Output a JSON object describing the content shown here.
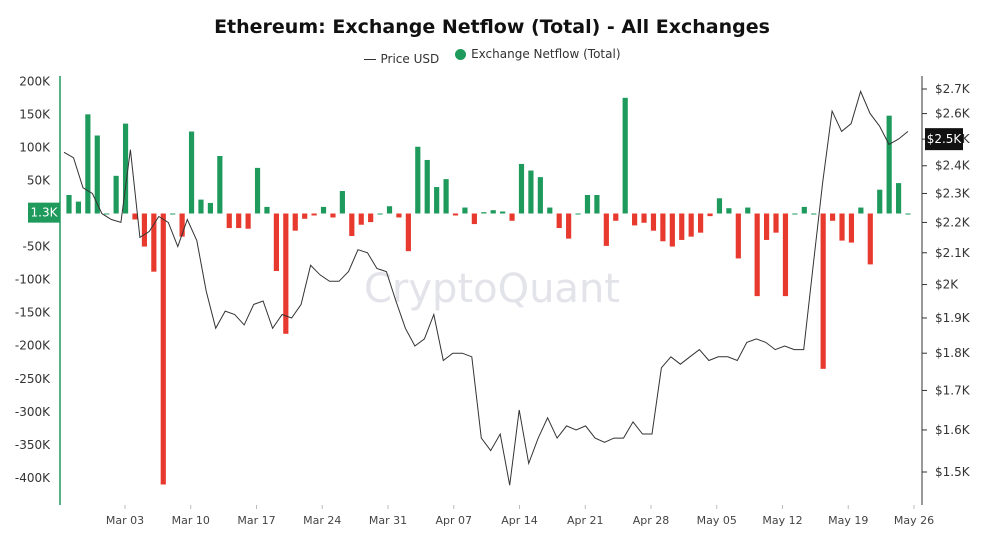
{
  "title": "Ethereum: Exchange Netflow (Total) - All Exchanges",
  "legend": {
    "price_label": "Price USD",
    "netflow_label": "Exchange Netflow (Total)"
  },
  "watermark": "CryptoQuant",
  "colors": {
    "inflow": "#1e9a5c",
    "outflow": "#e8392e",
    "price_line": "#333333",
    "axis_line": "#1e9a5c"
  },
  "chart_data": {
    "type": "bar",
    "title": "Ethereum: Exchange Netflow (Total) - All Exchanges",
    "x_tick_labels": [
      "Mar 03",
      "Mar 10",
      "Mar 17",
      "Mar 24",
      "Mar 31",
      "Apr 07",
      "Apr 14",
      "Apr 21",
      "Apr 28",
      "May 05",
      "May 12",
      "May 19",
      "May 26"
    ],
    "y_left": {
      "ticks": [
        200000,
        150000,
        100000,
        50000,
        -50000,
        -100000,
        -150000,
        -200000,
        -250000,
        -300000,
        -350000,
        -400000
      ],
      "tick_labels": [
        "200K",
        "150K",
        "100K",
        "50K",
        "-50K",
        "-100K",
        "-150K",
        "-200K",
        "-250K",
        "-300K",
        "-350K",
        "-400K"
      ],
      "range": [
        -440000,
        210000
      ],
      "current_value_label": "1.3K"
    },
    "y_right": {
      "ticks": [
        1500,
        1600,
        1700,
        1800,
        1900,
        2000,
        2100,
        2200,
        2300,
        2400,
        2500,
        2600,
        2700
      ],
      "tick_labels": [
        "$1.5K",
        "$1.6K",
        "$1.7K",
        "$1.8K",
        "$1.9K",
        "$2K",
        "$2.1K",
        "$2.2K",
        "$2.3K",
        "$2.4K",
        "$2.5K",
        "$2.6K",
        "$2.7K"
      ],
      "scale": "log",
      "current_value_label": "$2.5K"
    },
    "series": [
      {
        "name": "Exchange Netflow (Total)",
        "type": "bar",
        "values": [
          28000,
          18000,
          150000,
          118000,
          0,
          57000,
          136000,
          -9000,
          -50000,
          -88000,
          -410000,
          0,
          -35000,
          124000,
          21000,
          16000,
          87000,
          -22000,
          -22000,
          -23000,
          69000,
          10000,
          -87000,
          -182000,
          -26000,
          -8000,
          -3000,
          10000,
          -6000,
          34000,
          -34000,
          -17000,
          -13000,
          0,
          11000,
          -6000,
          -57000,
          101000,
          81000,
          40000,
          52000,
          -3000,
          9000,
          -16000,
          2000,
          5000,
          3000,
          -11000,
          75000,
          65000,
          55000,
          9000,
          -22000,
          -38000,
          0,
          28000,
          28000,
          -49000,
          -11000,
          175000,
          -18000,
          -14000,
          -26000,
          -42000,
          -50000,
          -40000,
          -35000,
          -29000,
          -4000,
          23000,
          8000,
          -68000,
          9000,
          -125000,
          -40000,
          -29000,
          -125000,
          0,
          10000,
          0,
          -235000,
          -11000,
          -41000,
          -44000,
          9000,
          -77000,
          36000,
          148000,
          46000,
          0
        ],
        "start_date": "Feb 25",
        "end_date": "May 24"
      },
      {
        "name": "Price USD",
        "type": "line",
        "values": [
          2450,
          2430,
          2320,
          2300,
          2230,
          2210,
          2200,
          2460,
          2150,
          2170,
          2220,
          2200,
          2120,
          2210,
          2140,
          1980,
          1870,
          1920,
          1910,
          1880,
          1940,
          1950,
          1870,
          1910,
          1900,
          1940,
          2060,
          2030,
          2010,
          2010,
          2040,
          2110,
          2100,
          2050,
          2040,
          1950,
          1870,
          1820,
          1840,
          1910,
          1780,
          1800,
          1800,
          1790,
          1580,
          1550,
          1590,
          1470,
          1650,
          1520,
          1580,
          1630,
          1580,
          1610,
          1600,
          1610,
          1580,
          1570,
          1580,
          1580,
          1620,
          1590,
          1590,
          1760,
          1790,
          1770,
          1790,
          1810,
          1780,
          1790,
          1790,
          1780,
          1830,
          1840,
          1830,
          1810,
          1820,
          1810,
          1810,
          2060,
          2340,
          2610,
          2530,
          2560,
          2690,
          2600,
          2550,
          2480,
          2500,
          2530
        ]
      }
    ]
  }
}
